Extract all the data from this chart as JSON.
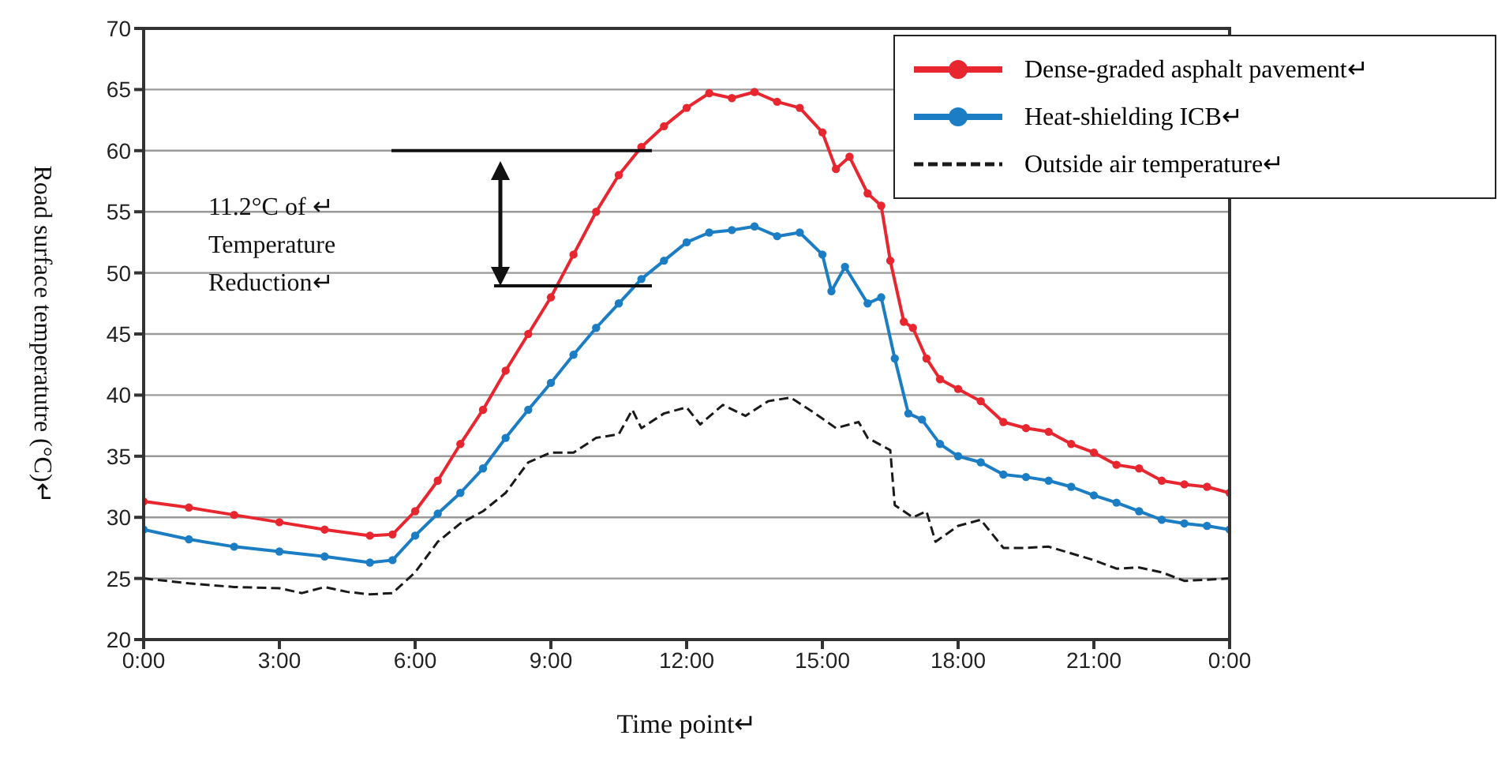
{
  "chart_data": {
    "type": "line",
    "xlabel": "Time point↵",
    "ylabel": "Road surface temperatutre (°C)↵",
    "annotations": [
      "11.2°C of ↵ Temperature Reduction↵"
    ],
    "xlim": [
      0,
      24
    ],
    "ylim": [
      20,
      70
    ],
    "xticks": [
      {
        "value": 0,
        "label": "0:00"
      },
      {
        "value": 3,
        "label": "3:00"
      },
      {
        "value": 6,
        "label": "6:00"
      },
      {
        "value": 9,
        "label": "9:00"
      },
      {
        "value": 12,
        "label": "12:00"
      },
      {
        "value": 15,
        "label": "15:00"
      },
      {
        "value": 18,
        "label": "18:00"
      },
      {
        "value": 21,
        "label": "21:00"
      },
      {
        "value": 24,
        "label": "0:00"
      }
    ],
    "yticks": [
      20,
      25,
      30,
      35,
      40,
      45,
      50,
      55,
      60,
      65,
      70
    ],
    "grid": "y",
    "legend": "top right",
    "series": [
      {
        "name": "Dense-graded asphalt pavement↵",
        "color": "#e8262f",
        "marker": "circle",
        "line_style": "solid",
        "x": [
          0,
          1,
          2,
          3,
          4,
          5,
          5.5,
          6,
          6.5,
          7,
          7.5,
          8,
          8.5,
          9,
          9.5,
          10,
          10.5,
          11,
          11.5,
          12,
          12.5,
          13,
          13.5,
          14,
          14.5,
          15,
          15.3,
          15.6,
          16,
          16.3,
          16.5,
          16.8,
          17,
          17.3,
          17.6,
          18,
          18.5,
          19,
          19.5,
          20,
          20.5,
          21,
          21.5,
          22,
          22.5,
          23,
          23.5,
          24
        ],
        "values": [
          31.3,
          30.8,
          30.2,
          29.6,
          29,
          28.5,
          28.6,
          30.5,
          33,
          36,
          38.8,
          42,
          45,
          48,
          51.5,
          55,
          58,
          60.3,
          62,
          63.5,
          64.7,
          64.3,
          64.8,
          64,
          63.5,
          61.5,
          58.5,
          59.5,
          56.5,
          55.5,
          51,
          46,
          45.5,
          43,
          41.3,
          40.5,
          39.5,
          37.8,
          37.3,
          37,
          36,
          35.3,
          34.3,
          34,
          33,
          32.7,
          32.5,
          32
        ]
      },
      {
        "name": "Heat-shielding ICB↵",
        "color": "#1b7dc4",
        "marker": "circle",
        "line_style": "solid",
        "x": [
          0,
          1,
          2,
          3,
          4,
          5,
          5.5,
          6,
          6.5,
          7,
          7.5,
          8,
          8.5,
          9,
          9.5,
          10,
          10.5,
          11,
          11.5,
          12,
          12.5,
          13,
          13.5,
          14,
          14.5,
          15,
          15.2,
          15.5,
          16,
          16.3,
          16.6,
          16.9,
          17.2,
          17.6,
          18,
          18.5,
          19,
          19.5,
          20,
          20.5,
          21,
          21.5,
          22,
          22.5,
          23,
          23.5,
          24
        ],
        "values": [
          29,
          28.2,
          27.6,
          27.2,
          26.8,
          26.3,
          26.5,
          28.5,
          30.3,
          32,
          34,
          36.5,
          38.8,
          41,
          43.3,
          45.5,
          47.5,
          49.5,
          51,
          52.5,
          53.3,
          53.5,
          53.8,
          53,
          53.3,
          51.5,
          48.5,
          50.5,
          47.5,
          48,
          43,
          38.5,
          38,
          36,
          35,
          34.5,
          33.5,
          33.3,
          33,
          32.5,
          31.8,
          31.2,
          30.5,
          29.8,
          29.5,
          29.3,
          29
        ]
      },
      {
        "name": "Outside air temperature↵",
        "color": "#1a1a1a",
        "marker": "none",
        "line_style": "dashed",
        "x": [
          0,
          1,
          2,
          3,
          3.5,
          4,
          4.5,
          5,
          5.5,
          6,
          6.5,
          7,
          7.5,
          8,
          8.5,
          9,
          9.5,
          10,
          10.5,
          10.8,
          11,
          11.5,
          12,
          12.3,
          12.8,
          13.3,
          13.8,
          14.3,
          14.8,
          15.3,
          15.8,
          16,
          16.5,
          16.6,
          17,
          17.3,
          17.5,
          18,
          18.5,
          19,
          19.5,
          20,
          21,
          21.5,
          22,
          22.5,
          23,
          24
        ],
        "values": [
          25,
          24.6,
          24.3,
          24.2,
          23.8,
          24.3,
          23.9,
          23.7,
          23.8,
          25.5,
          28,
          29.5,
          30.5,
          32,
          34.5,
          35.3,
          35.3,
          36.5,
          36.8,
          38.8,
          37.3,
          38.5,
          39,
          37.6,
          39.2,
          38.3,
          39.5,
          39.8,
          38.6,
          37.3,
          37.8,
          36.5,
          35.5,
          31,
          30,
          30.5,
          28,
          29.3,
          29.8,
          27.5,
          27.5,
          27.6,
          26.5,
          25.8,
          25.9,
          25.5,
          24.8,
          25
        ]
      }
    ]
  }
}
